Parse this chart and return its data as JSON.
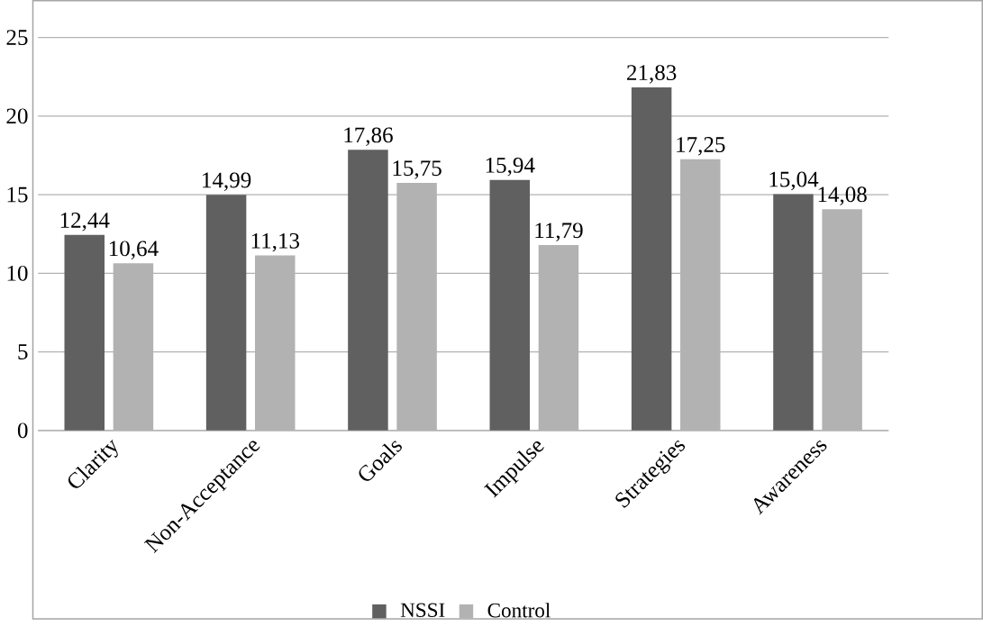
{
  "chart_data": {
    "type": "bar",
    "categories": [
      "Clarity",
      "Non-Acceptance",
      "Goals",
      "Impulse",
      "Strategies",
      "Awareness"
    ],
    "series": [
      {
        "name": "NSSI",
        "color": "#606060",
        "values": [
          12.44,
          14.99,
          17.86,
          15.94,
          21.83,
          15.04
        ],
        "value_labels": [
          "12,44",
          "14,99",
          "17,86",
          "15,94",
          "21,83",
          "15,04"
        ]
      },
      {
        "name": "Control",
        "color": "#b2b2b2",
        "values": [
          10.64,
          11.13,
          15.75,
          11.79,
          17.25,
          14.08
        ],
        "value_labels": [
          "10,64",
          "11,13",
          "15,75",
          "11,79",
          "17,25",
          "14,08"
        ]
      }
    ],
    "ylim": [
      0,
      25
    ],
    "yticks": [
      0,
      5,
      10,
      15,
      20,
      25
    ],
    "grid": "y",
    "legend": "bottom"
  }
}
